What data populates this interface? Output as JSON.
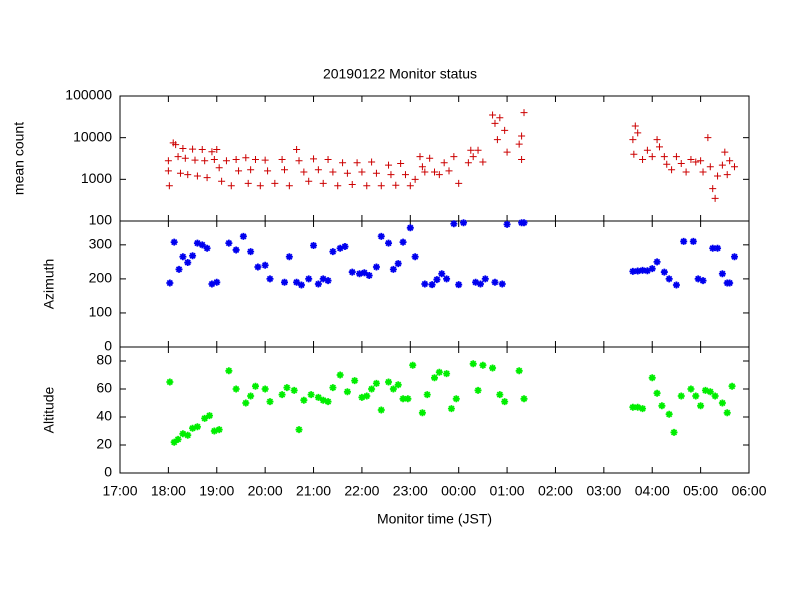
{
  "chart_data": [
    {
      "type": "scatter",
      "title": "20190122 Monitor status",
      "ylabel": "mean count",
      "color": "#cc0000",
      "marker": "plus",
      "log": true,
      "xlim": [
        17,
        30
      ],
      "ylim": [
        100,
        100000
      ],
      "yticks": [
        100,
        1000,
        10000,
        100000
      ],
      "x": [
        18,
        18,
        18.02,
        18.1,
        18.15,
        18.2,
        18.25,
        18.3,
        18.35,
        18.4,
        18.5,
        18.55,
        18.6,
        18.7,
        18.75,
        18.8,
        18.9,
        18.95,
        19,
        19.05,
        19.1,
        19.2,
        19.3,
        19.4,
        19.45,
        19.6,
        19.65,
        19.7,
        19.8,
        19.9,
        20,
        20.05,
        20.2,
        20.35,
        20.4,
        20.5,
        20.65,
        20.7,
        20.8,
        20.9,
        21,
        21.1,
        21.2,
        21.3,
        21.4,
        21.5,
        21.6,
        21.7,
        21.8,
        21.9,
        22,
        22.1,
        22.2,
        22.3,
        22.4,
        22.55,
        22.6,
        22.7,
        22.8,
        22.9,
        23,
        23.1,
        23.2,
        23.25,
        23.3,
        23.4,
        23.5,
        23.6,
        23.7,
        23.8,
        23.9,
        24,
        24.2,
        24.25,
        24.3,
        24.4,
        24.5,
        24.7,
        24.75,
        24.8,
        24.85,
        24.95,
        25,
        25.25,
        25.3,
        25.3,
        25.35,
        27.6,
        27.62,
        27.65,
        27.7,
        27.8,
        27.9,
        28,
        28.1,
        28.15,
        28.25,
        28.3,
        28.4,
        28.5,
        28.6,
        28.7,
        28.8,
        28.9,
        29,
        29.05,
        29.15,
        29.2,
        29.25,
        29.3,
        29.35,
        29.45,
        29.5,
        29.55,
        29.6,
        29.7
      ],
      "values": [
        1600,
        2800,
        700,
        7500,
        6800,
        3500,
        1400,
        5500,
        3200,
        1300,
        5300,
        2900,
        1200,
        5200,
        2800,
        1100,
        4600,
        3000,
        5200,
        1900,
        900,
        2800,
        700,
        3000,
        1600,
        3300,
        800,
        1700,
        3000,
        700,
        2900,
        1600,
        800,
        3000,
        1700,
        700,
        5200,
        2800,
        1500,
        900,
        3100,
        1700,
        800,
        3000,
        1500,
        700,
        2500,
        1400,
        750,
        2500,
        1500,
        700,
        2600,
        1400,
        700,
        2200,
        1300,
        720,
        2400,
        1300,
        700,
        1000,
        3500,
        2000,
        1500,
        3200,
        1500,
        1300,
        2500,
        1600,
        3500,
        800,
        2500,
        5000,
        3500,
        5000,
        2600,
        35000,
        22000,
        9000,
        30000,
        15000,
        4500,
        7000,
        11000,
        3000,
        40000,
        9000,
        4000,
        19000,
        13000,
        3000,
        5000,
        3500,
        9000,
        6000,
        3500,
        2300,
        1700,
        3500,
        2400,
        1500,
        3000,
        2600,
        2800,
        1500,
        10000,
        2000,
        600,
        350,
        1200,
        2200,
        4500,
        1300,
        2800,
        2000
      ]
    },
    {
      "type": "scatter",
      "ylabel": "Azimuth",
      "color": "#0000ee",
      "marker": "star",
      "xlim": [
        17,
        30
      ],
      "ylim": [
        0,
        370
      ],
      "yticks": [
        0,
        100,
        200,
        300
      ],
      "x": [
        18.03,
        18.12,
        18.22,
        18.3,
        18.4,
        18.5,
        18.6,
        18.7,
        18.8,
        18.9,
        19,
        19.25,
        19.4,
        19.55,
        19.7,
        19.85,
        20,
        20.1,
        20.4,
        20.5,
        20.65,
        20.75,
        20.9,
        21,
        21.1,
        21.2,
        21.3,
        21.4,
        21.55,
        21.65,
        21.8,
        21.95,
        22.05,
        22.15,
        22.3,
        22.4,
        22.55,
        22.65,
        22.75,
        22.85,
        23,
        23.1,
        23.3,
        23.45,
        23.55,
        23.65,
        23.75,
        23.9,
        24,
        24.1,
        24.35,
        24.45,
        24.55,
        24.75,
        24.9,
        25,
        25.3,
        25.35,
        27.6,
        27.7,
        27.8,
        27.9,
        28,
        28.1,
        28.25,
        28.35,
        28.5,
        28.65,
        28.85,
        28.95,
        29.05,
        29.25,
        29.35,
        29.45,
        29.55,
        29.6,
        29.7
      ],
      "values": [
        188,
        308,
        228,
        265,
        248,
        268,
        305,
        300,
        290,
        185,
        190,
        305,
        285,
        325,
        280,
        235,
        240,
        200,
        190,
        265,
        190,
        182,
        200,
        298,
        185,
        200,
        195,
        280,
        290,
        295,
        220,
        215,
        218,
        210,
        235,
        325,
        305,
        228,
        245,
        308,
        350,
        265,
        185,
        183,
        198,
        215,
        200,
        362,
        183,
        365,
        190,
        185,
        200,
        190,
        185,
        360,
        365,
        365,
        222,
        223,
        225,
        224,
        230,
        250,
        220,
        200,
        182,
        310,
        310,
        200,
        195,
        290,
        290,
        215,
        188,
        188,
        265
      ]
    },
    {
      "type": "scatter",
      "ylabel": "Altitude",
      "xlabel": "Monitor time (JST)",
      "color": "#00ee00",
      "marker": "star",
      "xlim": [
        17,
        30
      ],
      "ylim": [
        0,
        90
      ],
      "yticks": [
        0,
        20,
        40,
        60,
        80
      ],
      "xticks": [
        {
          "value": 17,
          "label": "17:00"
        },
        {
          "value": 18,
          "label": "18:00"
        },
        {
          "value": 19,
          "label": "19:00"
        },
        {
          "value": 20,
          "label": "20:00"
        },
        {
          "value": 21,
          "label": "21:00"
        },
        {
          "value": 22,
          "label": "22:00"
        },
        {
          "value": 23,
          "label": "23:00"
        },
        {
          "value": 24,
          "label": "00:00"
        },
        {
          "value": 25,
          "label": "01:00"
        },
        {
          "value": 26,
          "label": "02:00"
        },
        {
          "value": 27,
          "label": "03:00"
        },
        {
          "value": 28,
          "label": "04:00"
        },
        {
          "value": 29,
          "label": "05:00"
        },
        {
          "value": 30,
          "label": "06:00"
        }
      ],
      "x": [
        18.03,
        18.12,
        18.2,
        18.3,
        18.4,
        18.5,
        18.6,
        18.75,
        18.85,
        18.95,
        19.05,
        19.25,
        19.4,
        19.6,
        19.7,
        19.8,
        20,
        20.1,
        20.35,
        20.45,
        20.6,
        20.7,
        20.8,
        20.95,
        21.1,
        21.2,
        21.3,
        21.4,
        21.55,
        21.7,
        21.85,
        22,
        22.1,
        22.2,
        22.3,
        22.4,
        22.55,
        22.65,
        22.75,
        22.85,
        22.95,
        23.05,
        23.25,
        23.35,
        23.5,
        23.6,
        23.75,
        23.85,
        23.95,
        24.3,
        24.4,
        24.5,
        24.7,
        24.85,
        24.95,
        25.25,
        25.35,
        27.6,
        27.7,
        27.8,
        28,
        28.1,
        28.2,
        28.35,
        28.45,
        28.6,
        28.8,
        28.9,
        29,
        29.1,
        29.2,
        29.3,
        29.45,
        29.55,
        29.65
      ],
      "values": [
        65,
        22,
        24,
        28,
        27,
        32,
        33,
        39,
        41,
        30,
        31,
        73,
        60,
        50,
        55,
        62,
        60,
        51,
        56,
        61,
        59,
        31,
        52,
        56,
        54,
        52,
        51,
        61,
        70,
        58,
        66,
        54,
        55,
        60,
        64,
        45,
        65,
        60,
        63,
        53,
        53,
        77,
        43,
        56,
        68,
        72,
        71,
        46,
        53,
        78,
        59,
        77,
        75,
        56,
        51,
        73,
        53,
        47,
        47,
        46,
        68,
        57,
        48,
        42,
        29,
        55,
        60,
        55,
        48,
        59,
        58,
        55,
        50,
        43,
        62
      ]
    }
  ]
}
